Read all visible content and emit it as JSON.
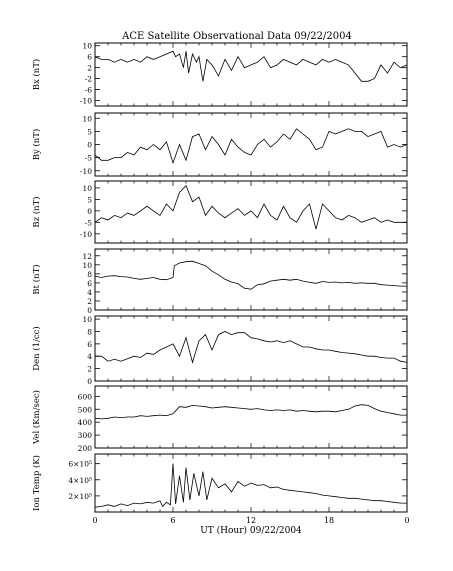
{
  "chart_data": {
    "type": "line",
    "title": "ACE Satellite Observational Data  09/22/2004",
    "xlabel": "UT (Hour)  09/22/2004",
    "xlim": [
      0,
      24
    ],
    "x_ticks": [
      "0",
      "6",
      "12",
      "18",
      "0"
    ],
    "panels": [
      {
        "ylabel": "Bx (nT)",
        "ylim": [
          -12,
          11
        ],
        "y_ticks": [
          10,
          6,
          2,
          -2,
          -6,
          -10
        ],
        "y_tick_labels": [
          "10",
          "6",
          "2",
          "-2",
          "-6",
          "-10"
        ],
        "x": [
          0,
          0.5,
          1,
          1.5,
          2,
          2.5,
          3,
          3.5,
          4,
          4.5,
          5,
          5.5,
          6,
          6.2,
          6.5,
          6.8,
          7,
          7.2,
          7.5,
          7.8,
          8,
          8.3,
          8.6,
          9,
          9.5,
          10,
          10.5,
          11,
          11.5,
          12,
          12.5,
          13,
          13.5,
          14,
          14.5,
          15,
          15.5,
          16,
          16.5,
          17,
          17.5,
          18,
          18.5,
          19,
          19.5,
          20,
          20.5,
          21,
          21.5,
          22,
          22.5,
          23,
          23.5,
          24
        ],
        "values": [
          6,
          5,
          5,
          4,
          5,
          4,
          5,
          4,
          6,
          5,
          6,
          7,
          8,
          6,
          7,
          2,
          8,
          0,
          7,
          4,
          6,
          -3,
          5,
          3,
          -1,
          5,
          1,
          6,
          2,
          3,
          4,
          6,
          2,
          3,
          5,
          4,
          3,
          5,
          4,
          3,
          5,
          4,
          5,
          4,
          3,
          0,
          -3,
          -3,
          -2,
          3,
          0,
          4,
          2,
          3
        ]
      },
      {
        "ylabel": "By (nT)",
        "ylim": [
          -12,
          12
        ],
        "y_ticks": [
          10,
          5,
          0,
          -5,
          -10
        ],
        "y_tick_labels": [
          "10",
          "5",
          "0",
          "-5",
          "-10"
        ],
        "x": [
          0,
          0.5,
          1,
          1.5,
          2,
          2.5,
          3,
          3.5,
          4,
          4.5,
          5,
          5.5,
          6,
          6.5,
          7,
          7.5,
          8,
          8.5,
          9,
          9.5,
          10,
          10.5,
          11,
          11.5,
          12,
          12.5,
          13,
          13.5,
          14,
          14.5,
          15,
          15.5,
          16,
          16.5,
          17,
          17.5,
          18,
          18.5,
          19,
          19.5,
          20,
          20.5,
          21,
          21.5,
          22,
          22.5,
          23,
          23.5,
          24
        ],
        "values": [
          -4,
          -6,
          -6,
          -5,
          -5,
          -3,
          -4,
          -1,
          -2,
          0,
          -2,
          1,
          -7,
          0,
          -6,
          3,
          4,
          -2,
          3,
          0,
          -4,
          2,
          -1,
          -3,
          -4,
          0,
          2,
          -1,
          1,
          4,
          2,
          6,
          4,
          2,
          -2,
          -1,
          5,
          4,
          5,
          6,
          5,
          5,
          3,
          4,
          5,
          -1,
          0,
          -1,
          0
        ]
      },
      {
        "ylabel": "Bz (nT)",
        "ylim": [
          -14,
          13
        ],
        "y_ticks": [
          10,
          5,
          0,
          -5,
          -10
        ],
        "y_tick_labels": [
          "10",
          "5",
          "0",
          "-5",
          "-10"
        ],
        "x": [
          0,
          0.5,
          1,
          1.5,
          2,
          2.5,
          3,
          3.5,
          4,
          4.5,
          5,
          5.5,
          6,
          6.5,
          7,
          7.5,
          8,
          8.5,
          9,
          9.5,
          10,
          10.5,
          11,
          11.5,
          12,
          12.5,
          13,
          13.5,
          14,
          14.5,
          15,
          15.5,
          16,
          16.5,
          17,
          17.5,
          18,
          18.5,
          19,
          19.5,
          20,
          20.5,
          21,
          21.5,
          22,
          22.5,
          23,
          23.5,
          24
        ],
        "values": [
          -5,
          -3,
          -4,
          -2,
          -3,
          -1,
          -2,
          0,
          2,
          0,
          -2,
          3,
          0,
          8,
          11,
          4,
          6,
          -2,
          2,
          -1,
          -3,
          -1,
          1,
          -2,
          0,
          -3,
          3,
          -2,
          -4,
          2,
          -3,
          -5,
          0,
          3,
          -8,
          3,
          0,
          -3,
          -4,
          -2,
          -3,
          -5,
          -4,
          -3,
          -5,
          -4,
          -5,
          -5,
          -5
        ]
      },
      {
        "ylabel": "Bt (nT)",
        "ylim": [
          0,
          13.5
        ],
        "y_ticks": [
          12,
          10,
          8,
          6,
          4,
          2,
          0
        ],
        "y_tick_labels": [
          "12",
          "10",
          "8",
          "6",
          "4",
          "2",
          "0"
        ],
        "x": [
          0,
          0.5,
          1,
          1.5,
          2,
          2.5,
          3,
          3.5,
          4,
          4.5,
          5,
          5.5,
          6,
          6.1,
          6.5,
          7,
          7.5,
          8,
          8.5,
          9,
          9.5,
          10,
          10.5,
          11,
          11.5,
          12,
          12.5,
          13,
          13.5,
          14,
          14.5,
          15,
          15.5,
          16,
          16.5,
          17,
          17.5,
          18,
          18.5,
          19,
          19.5,
          20,
          20.5,
          21,
          21.5,
          22,
          22.5,
          23,
          23.5,
          24
        ],
        "values": [
          7.5,
          7.2,
          7.5,
          7.6,
          7.4,
          7.3,
          7.0,
          6.8,
          7.0,
          7.2,
          6.8,
          6.7,
          7.2,
          9.8,
          10.4,
          10.7,
          10.8,
          10.3,
          9.8,
          8.6,
          7.8,
          6.8,
          6.2,
          5.8,
          4.8,
          4.6,
          5.6,
          5.8,
          6.4,
          6.6,
          6.8,
          6.6,
          6.8,
          6.4,
          6.1,
          5.9,
          6.3,
          6.1,
          6.2,
          6.0,
          6.1,
          5.9,
          6.0,
          5.9,
          5.9,
          5.6,
          5.5,
          5.4,
          5.3,
          5.3
        ]
      },
      {
        "ylabel": "Den (1/cc)",
        "ylim": [
          0,
          10.5
        ],
        "y_ticks": [
          10,
          8,
          6,
          4,
          2,
          0
        ],
        "y_tick_labels": [
          "10",
          "8",
          "6",
          "4",
          "2",
          "0"
        ],
        "x": [
          0,
          0.5,
          1,
          1.5,
          2,
          2.5,
          3,
          3.5,
          4,
          4.5,
          5,
          5.5,
          6,
          6.5,
          7,
          7.5,
          8,
          8.5,
          9,
          9.5,
          10,
          10.5,
          11,
          11.5,
          12,
          12.5,
          13,
          13.5,
          14,
          14.5,
          15,
          15.5,
          16,
          16.5,
          17,
          17.5,
          18,
          18.5,
          19,
          19.5,
          20,
          20.5,
          21,
          21.5,
          22,
          22.5,
          23,
          23.5,
          24
        ],
        "values": [
          4,
          4,
          3.2,
          3.5,
          3.2,
          3.6,
          4.0,
          3.8,
          4.5,
          4.3,
          5,
          5.5,
          6,
          4,
          7,
          3,
          6.5,
          7.5,
          5,
          7.5,
          8,
          7.5,
          7.8,
          7.8,
          7,
          6.8,
          6.5,
          6.3,
          6.5,
          6.2,
          6.5,
          6,
          5.5,
          5.5,
          5.2,
          5,
          5,
          4.8,
          4.6,
          4.5,
          4.4,
          4.2,
          4.0,
          4.0,
          3.8,
          3.7,
          3.7,
          3.2,
          3.0
        ]
      },
      {
        "ylabel": "Vel (Km/sec)",
        "ylim": [
          200,
          680
        ],
        "y_ticks": [
          600,
          500,
          400,
          300,
          200
        ],
        "y_tick_labels": [
          "600",
          "500",
          "400",
          "300",
          "200"
        ],
        "x": [
          0,
          0.5,
          1,
          1.5,
          2,
          2.5,
          3,
          3.5,
          4,
          4.5,
          5,
          5.5,
          6,
          6.5,
          7,
          7.5,
          8,
          8.5,
          9,
          9.5,
          10,
          10.5,
          11,
          11.5,
          12,
          12.5,
          13,
          13.5,
          14,
          14.5,
          15,
          15.5,
          16,
          16.5,
          17,
          17.5,
          18,
          18.5,
          19,
          19.5,
          20,
          20.5,
          21,
          21.5,
          22,
          22.5,
          23,
          23.5,
          24
        ],
        "values": [
          430,
          425,
          430,
          440,
          435,
          440,
          440,
          450,
          445,
          450,
          455,
          450,
          465,
          520,
          515,
          530,
          525,
          520,
          510,
          515,
          520,
          515,
          510,
          505,
          500,
          505,
          495,
          490,
          495,
          490,
          495,
          485,
          490,
          485,
          480,
          485,
          485,
          480,
          490,
          500,
          525,
          535,
          530,
          505,
          485,
          475,
          465,
          455,
          455
        ]
      },
      {
        "ylabel": "Ion Temp (K)",
        "ylim": [
          0,
          720000
        ],
        "y_ticks": [
          600000,
          400000,
          200000
        ],
        "y_tick_labels": [
          "6×10⁵",
          "4×10⁵",
          "2×10⁵"
        ],
        "x": [
          0,
          0.5,
          1,
          1.5,
          2,
          2.5,
          3,
          3.5,
          4,
          4.5,
          5,
          5.2,
          5.5,
          5.8,
          6,
          6.2,
          6.5,
          6.8,
          7,
          7.3,
          7.6,
          8,
          8.3,
          8.6,
          9,
          9.5,
          10,
          10.5,
          11,
          11.5,
          12,
          12.5,
          13,
          13.5,
          14,
          14.5,
          15,
          15.5,
          16,
          16.5,
          17,
          17.5,
          18,
          18.5,
          19,
          19.5,
          20,
          20.5,
          21,
          21.5,
          22,
          22.5,
          23,
          23.5,
          24
        ],
        "values": [
          60000,
          70000,
          90000,
          70000,
          100000,
          80000,
          110000,
          100000,
          120000,
          110000,
          140000,
          70000,
          120000,
          90000,
          600000,
          100000,
          450000,
          120000,
          550000,
          150000,
          480000,
          200000,
          500000,
          150000,
          420000,
          300000,
          350000,
          250000,
          380000,
          320000,
          360000,
          330000,
          340000,
          300000,
          310000,
          280000,
          270000,
          260000,
          250000,
          240000,
          230000,
          210000,
          200000,
          190000,
          180000,
          170000,
          170000,
          160000,
          150000,
          140000,
          140000,
          130000,
          120000,
          110000,
          110000
        ]
      }
    ],
    "grid": false,
    "legend": "none"
  }
}
